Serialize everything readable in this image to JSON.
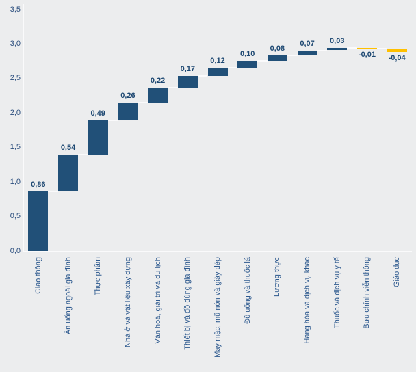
{
  "chart_data": {
    "type": "bar",
    "subtype": "waterfall",
    "title": "",
    "xlabel": "",
    "ylabel": "",
    "ylim": [
      0,
      3.5
    ],
    "grid": false,
    "legend": false,
    "decimal_separator": ",",
    "categories": [
      "Giao thông",
      "Ăn uống ngoài gia đình",
      "Thực phẩm",
      "Nhà ở và vật liệu xây dựng",
      "Văn hoá, giải trí và du lịch",
      "Thiết bị và đồ dùng gia đình",
      "May mặc, mũ nón và giày dép",
      "Đồ uống và thuốc lá",
      "Lương thực",
      "Hàng hóa và dịch vụ khác",
      "Thuốc và dịch vụ y tế",
      "Bưu chính viễn thông",
      "Giáo dục"
    ],
    "values": [
      0.86,
      0.54,
      0.49,
      0.26,
      0.22,
      0.17,
      0.12,
      0.1,
      0.08,
      0.07,
      0.03,
      -0.01,
      -0.04
    ],
    "value_labels": [
      "0,86",
      "0,54",
      "0,49",
      "0,26",
      "0,22",
      "0,17",
      "0,12",
      "0,10",
      "0,08",
      "0,07",
      "0,03",
      "-0,01",
      "-0,04"
    ],
    "y_ticks": [
      {
        "label": "0,0",
        "value": 0.0
      },
      {
        "label": "0,5",
        "value": 0.5
      },
      {
        "label": "1,0",
        "value": 1.0
      },
      {
        "label": "1,5",
        "value": 1.5
      },
      {
        "label": "2,0",
        "value": 2.0
      },
      {
        "label": "2,5",
        "value": 2.5
      },
      {
        "label": "3,0",
        "value": 3.0
      },
      {
        "label": "3,5",
        "value": 3.5
      }
    ],
    "colors": {
      "positive_bar": "#215078",
      "negative_bar": "#FFC000",
      "connector": "#FAFAFB",
      "axis_line": "#FAFAFB",
      "value_label": "#1D4872",
      "tick_label": "#2B4E7E",
      "category_label": "#2E5A8F",
      "background": "#ECEDEE"
    }
  }
}
